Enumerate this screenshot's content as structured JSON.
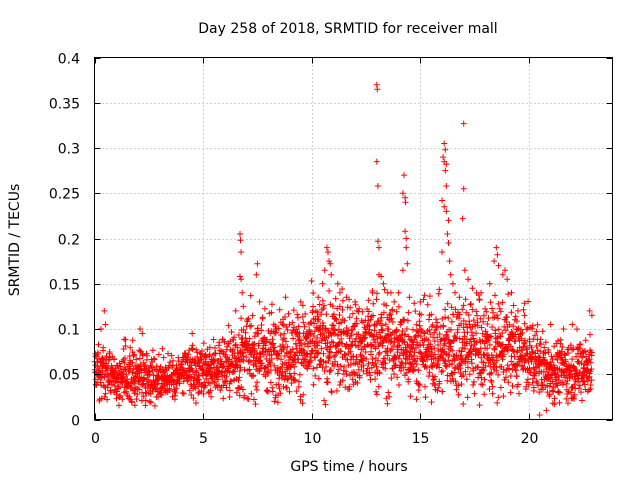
{
  "chart_data": {
    "type": "scatter",
    "title": "Day 258 of 2018, SRMTID for receiver mall",
    "xlabel": "GPS time / hours",
    "ylabel": "SRMTID / TECUs",
    "xlim": [
      0,
      23.85
    ],
    "ylim": [
      0,
      0.4
    ],
    "xticks": [
      0,
      5,
      10,
      15,
      20
    ],
    "xtick_labels": [
      "0",
      "5",
      "10",
      "15",
      "20"
    ],
    "yticks": [
      0,
      0.05,
      0.1,
      0.15,
      0.2,
      0.25,
      0.3,
      0.35,
      0.4
    ],
    "ytick_labels": [
      "0",
      "0.05",
      "0.1",
      "0.15",
      "0.2",
      "0.25",
      "0.3",
      "0.35",
      "0.4"
    ],
    "grid": true,
    "marker": "plus",
    "color": "#ff0000",
    "baseline_profile": [
      {
        "hour": 0.0,
        "mean": 0.055,
        "spread": 0.02
      },
      {
        "hour": 1.0,
        "mean": 0.048,
        "spread": 0.018
      },
      {
        "hour": 2.0,
        "mean": 0.05,
        "spread": 0.02
      },
      {
        "hour": 3.0,
        "mean": 0.045,
        "spread": 0.016
      },
      {
        "hour": 4.0,
        "mean": 0.05,
        "spread": 0.016
      },
      {
        "hour": 5.0,
        "mean": 0.055,
        "spread": 0.018
      },
      {
        "hour": 6.0,
        "mean": 0.06,
        "spread": 0.022
      },
      {
        "hour": 7.0,
        "mean": 0.07,
        "spread": 0.028
      },
      {
        "hour": 8.0,
        "mean": 0.075,
        "spread": 0.03
      },
      {
        "hour": 9.0,
        "mean": 0.075,
        "spread": 0.028
      },
      {
        "hour": 10.0,
        "mean": 0.08,
        "spread": 0.03
      },
      {
        "hour": 11.0,
        "mean": 0.085,
        "spread": 0.035
      },
      {
        "hour": 12.0,
        "mean": 0.08,
        "spread": 0.03
      },
      {
        "hour": 13.0,
        "mean": 0.085,
        "spread": 0.035
      },
      {
        "hour": 14.0,
        "mean": 0.08,
        "spread": 0.03
      },
      {
        "hour": 15.0,
        "mean": 0.08,
        "spread": 0.03
      },
      {
        "hour": 16.0,
        "mean": 0.075,
        "spread": 0.03
      },
      {
        "hour": 17.0,
        "mean": 0.085,
        "spread": 0.035
      },
      {
        "hour": 18.0,
        "mean": 0.08,
        "spread": 0.035
      },
      {
        "hour": 19.0,
        "mean": 0.08,
        "spread": 0.03
      },
      {
        "hour": 20.0,
        "mean": 0.07,
        "spread": 0.025
      },
      {
        "hour": 21.0,
        "mean": 0.055,
        "spread": 0.02
      },
      {
        "hour": 22.0,
        "mean": 0.055,
        "spread": 0.02
      },
      {
        "hour": 22.9,
        "mean": 0.06,
        "spread": 0.022
      }
    ],
    "outliers": [
      {
        "x": 0.3,
        "y": 0.1
      },
      {
        "x": 0.45,
        "y": 0.12
      },
      {
        "x": 0.5,
        "y": 0.105
      },
      {
        "x": 2.1,
        "y": 0.1
      },
      {
        "x": 2.2,
        "y": 0.095
      },
      {
        "x": 4.5,
        "y": 0.095
      },
      {
        "x": 6.5,
        "y": 0.12
      },
      {
        "x": 6.7,
        "y": 0.205
      },
      {
        "x": 6.72,
        "y": 0.198
      },
      {
        "x": 6.75,
        "y": 0.185
      },
      {
        "x": 6.7,
        "y": 0.158
      },
      {
        "x": 6.75,
        "y": 0.155
      },
      {
        "x": 6.8,
        "y": 0.14
      },
      {
        "x": 6.85,
        "y": 0.125
      },
      {
        "x": 7.5,
        "y": 0.172
      },
      {
        "x": 7.45,
        "y": 0.16
      },
      {
        "x": 7.6,
        "y": 0.13
      },
      {
        "x": 8.8,
        "y": 0.135
      },
      {
        "x": 9.5,
        "y": 0.13
      },
      {
        "x": 10.3,
        "y": 0.135
      },
      {
        "x": 10.5,
        "y": 0.15
      },
      {
        "x": 10.6,
        "y": 0.165
      },
      {
        "x": 10.7,
        "y": 0.19
      },
      {
        "x": 10.75,
        "y": 0.185
      },
      {
        "x": 10.8,
        "y": 0.175
      },
      {
        "x": 10.85,
        "y": 0.172
      },
      {
        "x": 10.9,
        "y": 0.16
      },
      {
        "x": 11.2,
        "y": 0.15
      },
      {
        "x": 11.3,
        "y": 0.14
      },
      {
        "x": 11.6,
        "y": 0.135
      },
      {
        "x": 12.0,
        "y": 0.13
      },
      {
        "x": 12.8,
        "y": 0.14
      },
      {
        "x": 13.0,
        "y": 0.37
      },
      {
        "x": 13.02,
        "y": 0.365
      },
      {
        "x": 13.0,
        "y": 0.285
      },
      {
        "x": 13.05,
        "y": 0.258
      },
      {
        "x": 13.05,
        "y": 0.197
      },
      {
        "x": 13.1,
        "y": 0.19
      },
      {
        "x": 13.1,
        "y": 0.16
      },
      {
        "x": 13.2,
        "y": 0.158
      },
      {
        "x": 13.3,
        "y": 0.15
      },
      {
        "x": 13.5,
        "y": 0.14
      },
      {
        "x": 13.8,
        "y": 0.13
      },
      {
        "x": 14.2,
        "y": 0.25
      },
      {
        "x": 14.25,
        "y": 0.27
      },
      {
        "x": 14.3,
        "y": 0.245
      },
      {
        "x": 14.32,
        "y": 0.24
      },
      {
        "x": 14.3,
        "y": 0.208
      },
      {
        "x": 14.35,
        "y": 0.2
      },
      {
        "x": 14.35,
        "y": 0.19
      },
      {
        "x": 14.4,
        "y": 0.172
      },
      {
        "x": 14.2,
        "y": 0.165
      },
      {
        "x": 14.0,
        "y": 0.14
      },
      {
        "x": 14.5,
        "y": 0.135
      },
      {
        "x": 15.0,
        "y": 0.13
      },
      {
        "x": 16.1,
        "y": 0.305
      },
      {
        "x": 16.15,
        "y": 0.298
      },
      {
        "x": 16.05,
        "y": 0.29
      },
      {
        "x": 16.1,
        "y": 0.285
      },
      {
        "x": 16.2,
        "y": 0.282
      },
      {
        "x": 16.15,
        "y": 0.275
      },
      {
        "x": 16.2,
        "y": 0.258
      },
      {
        "x": 16.0,
        "y": 0.242
      },
      {
        "x": 16.1,
        "y": 0.235
      },
      {
        "x": 16.2,
        "y": 0.23
      },
      {
        "x": 16.3,
        "y": 0.22
      },
      {
        "x": 16.25,
        "y": 0.205
      },
      {
        "x": 16.3,
        "y": 0.195
      },
      {
        "x": 16.0,
        "y": 0.185
      },
      {
        "x": 16.35,
        "y": 0.175
      },
      {
        "x": 16.4,
        "y": 0.16
      },
      {
        "x": 16.5,
        "y": 0.15
      },
      {
        "x": 16.6,
        "y": 0.14
      },
      {
        "x": 16.8,
        "y": 0.135
      },
      {
        "x": 17.0,
        "y": 0.327
      },
      {
        "x": 17.0,
        "y": 0.255
      },
      {
        "x": 16.95,
        "y": 0.222
      },
      {
        "x": 17.05,
        "y": 0.165
      },
      {
        "x": 17.2,
        "y": 0.155
      },
      {
        "x": 17.4,
        "y": 0.145
      },
      {
        "x": 17.8,
        "y": 0.14
      },
      {
        "x": 18.2,
        "y": 0.15
      },
      {
        "x": 18.4,
        "y": 0.175
      },
      {
        "x": 18.5,
        "y": 0.19
      },
      {
        "x": 18.55,
        "y": 0.182
      },
      {
        "x": 18.6,
        "y": 0.17
      },
      {
        "x": 18.8,
        "y": 0.16
      },
      {
        "x": 18.9,
        "y": 0.165
      },
      {
        "x": 19.0,
        "y": 0.155
      },
      {
        "x": 19.2,
        "y": 0.14
      },
      {
        "x": 19.5,
        "y": 0.12
      },
      {
        "x": 19.8,
        "y": 0.115
      },
      {
        "x": 20.5,
        "y": 0.005
      },
      {
        "x": 20.8,
        "y": 0.01
      },
      {
        "x": 21.0,
        "y": 0.105
      },
      {
        "x": 21.6,
        "y": 0.1
      },
      {
        "x": 22.0,
        "y": 0.105
      },
      {
        "x": 22.8,
        "y": 0.12
      },
      {
        "x": 22.9,
        "y": 0.115
      }
    ]
  }
}
